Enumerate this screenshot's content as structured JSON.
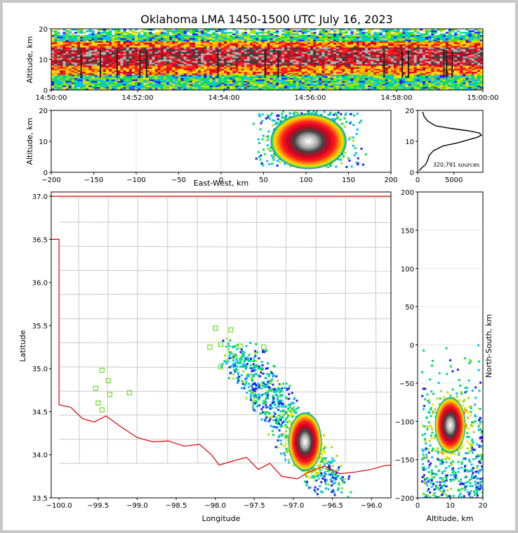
{
  "title": "Oklahoma LMA 1450-1500 UTC July 16, 2023",
  "colors": {
    "density_scale": [
      "#2020ff",
      "#00c0ff",
      "#00e060",
      "#a0e000",
      "#ffe000",
      "#ffa000",
      "#ff2020",
      "#d00020",
      "#404040",
      "#b0b0b0",
      "#ffffff"
    ],
    "state_border": "#e00000",
    "county_lines": "#c8c8c8",
    "station_marker": "#66e020",
    "profile_line": "#000000"
  },
  "chart_data": [
    {
      "panel": "altitude-time",
      "type": "heatmap",
      "ylabel": "Altitude, km",
      "ylim": [
        0,
        20
      ],
      "y_ticks": [
        "0",
        "10",
        "20"
      ],
      "x_ticks": [
        "14:50:00",
        "14:52:00",
        "14:54:00",
        "14:56:00",
        "14:58:00",
        "15:00:00"
      ],
      "xlim": [
        "14:50:00",
        "15:00:00"
      ],
      "density_band_km": {
        "core": [
          8,
          14
        ],
        "outer": [
          2,
          20
        ]
      }
    },
    {
      "panel": "east-west-altitude",
      "type": "heatmap",
      "xlabel": "East-West, km",
      "ylabel": "Altitude, km",
      "xlim": [
        -200,
        200
      ],
      "ylim": [
        0,
        20
      ],
      "x_ticks": [
        "−200",
        "−150",
        "−100",
        "−50",
        "0",
        "50",
        "100",
        "150",
        "200"
      ],
      "y_ticks": [
        "0",
        "10",
        "20"
      ],
      "core_center": {
        "x": 103,
        "alt": 10
      }
    },
    {
      "panel": "altitude-histogram",
      "type": "line",
      "annotation": "320,791 sources",
      "xlim": [
        0,
        9000
      ],
      "ylim": [
        0,
        20
      ],
      "x_ticks": [
        "0",
        "5000"
      ],
      "y_ticks": [
        "0",
        "10",
        "20"
      ],
      "x": [
        200,
        600,
        1100,
        1400,
        1600,
        2200,
        3500,
        5500,
        7000,
        8200,
        8800,
        8500,
        7000,
        4500,
        2500,
        1400,
        900,
        700
      ],
      "y": [
        0.5,
        1.5,
        2.5,
        4,
        5.5,
        7,
        8.5,
        9.5,
        10.5,
        11.3,
        12,
        12.7,
        13.4,
        14.2,
        15,
        16.5,
        18,
        19.5
      ]
    },
    {
      "panel": "plan-view",
      "type": "scatter",
      "xlabel": "Longitude",
      "ylabel": "Latitude",
      "xlim": [
        -100.1,
        -95.75
      ],
      "ylim": [
        33.5,
        37.05
      ],
      "x_ticks": [
        "−100.0",
        "−99.5",
        "−99.0",
        "−98.5",
        "−98.0",
        "−97.5",
        "−97.0",
        "−96.5",
        "−96.0"
      ],
      "y_ticks": [
        "33.5",
        "34.0",
        "34.5",
        "35.0",
        "35.5",
        "36.0",
        "36.5",
        "37.0"
      ],
      "stations": [
        {
          "lon": -98.0,
          "lat": 35.47
        },
        {
          "lon": -97.8,
          "lat": 35.45
        },
        {
          "lon": -97.93,
          "lat": 35.28
        },
        {
          "lon": -97.68,
          "lat": 35.26
        },
        {
          "lon": -98.07,
          "lat": 35.25
        },
        {
          "lon": -97.38,
          "lat": 35.25
        },
        {
          "lon": -97.75,
          "lat": 35.14
        },
        {
          "lon": -97.93,
          "lat": 35.02
        },
        {
          "lon": -99.45,
          "lat": 34.98
        },
        {
          "lon": -99.37,
          "lat": 34.86
        },
        {
          "lon": -99.53,
          "lat": 34.77
        },
        {
          "lon": -99.1,
          "lat": 34.72
        },
        {
          "lon": -99.35,
          "lat": 34.7
        },
        {
          "lon": -99.5,
          "lat": 34.6
        },
        {
          "lon": -99.45,
          "lat": 34.52
        }
      ],
      "core_center": {
        "lon": -96.85,
        "lat": 34.15
      }
    },
    {
      "panel": "altitude-north-south",
      "type": "heatmap",
      "xlabel": "Altitude, km",
      "ylabel": "North-South, km",
      "xlim": [
        0,
        20
      ],
      "ylim": [
        -200,
        200
      ],
      "x_ticks": [
        "0",
        "10",
        "20"
      ],
      "y_ticks": [
        "−200",
        "−150",
        "−100",
        "−50",
        "0",
        "50",
        "100",
        "150",
        "200"
      ],
      "core_center": {
        "alt": 10,
        "y": -105
      }
    }
  ]
}
